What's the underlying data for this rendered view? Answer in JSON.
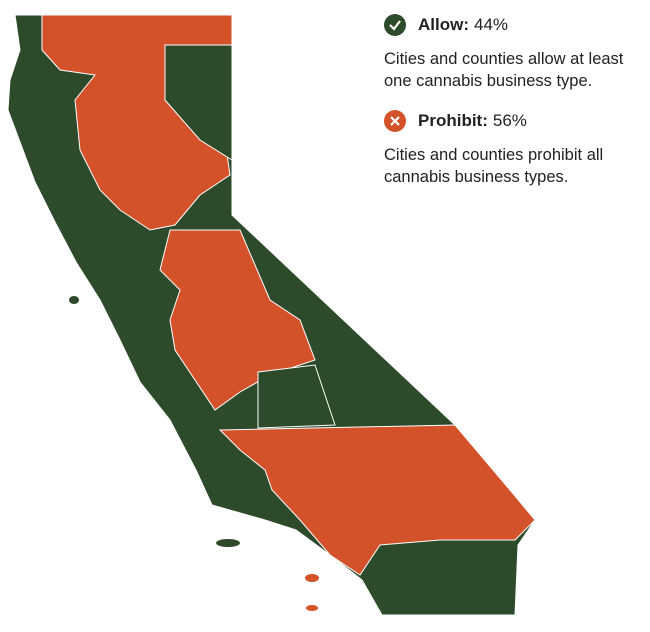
{
  "legend": {
    "items": [
      {
        "label": "Allow:",
        "share": "44%",
        "description": "Cities and counties allow at least one cannabis business type."
      },
      {
        "label": "Prohibit:",
        "share": "56%",
        "description": "Cities and counties prohibit all cannabis business types."
      }
    ]
  }
}
